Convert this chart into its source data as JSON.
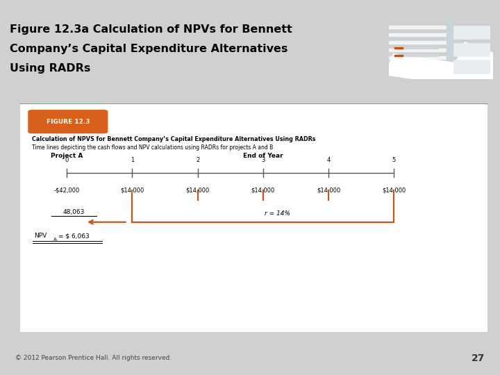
{
  "title_line1": "Figure 12.3a Calculation of NPVs for Bennett",
  "title_line2": "Company’s Capital Expenditure Alternatives",
  "title_line3": "Using RADRs",
  "slide_bg": "#D0D0D0",
  "title_bg": "#F5F5F5",
  "orange_bar_color": "#D9601A",
  "photo_bg": "#D9601A",
  "photo_inner_bg": "#E8EEF2",
  "figure_label": "FIGURE 12.3",
  "figure_label_bg": "#D9601A",
  "fig_title": "Calculation of NPVS for Bennett Company’s Capital Expenditure Alternatives Using RADRs",
  "fig_subtitle": "Time lines depicting the cash flows and NPV calculations using RADRs for projects A and B",
  "project_label": "Project A",
  "end_of_year_label": "End of Year",
  "years": [
    "0",
    "1",
    "2",
    "3",
    "4",
    "5"
  ],
  "cash_flows": [
    "-$42,000",
    "$14,000",
    "$14,000",
    "$14,000",
    "$14,000",
    "$14,000"
  ],
  "rate_label": "r = 14%",
  "pv_value": "48,063",
  "npv_text": "NPV",
  "npv_sub": "A",
  "npv_value": "= $ 6,063",
  "footer_text": "© 2012 Pearson Prentice Hall. All rights reserved.",
  "footer_page": "27",
  "arrow_color": "#C8561A",
  "box_border_color": "#C8561A",
  "content_bg": "#FFFFFF",
  "gray_border": "#BBBBBB"
}
